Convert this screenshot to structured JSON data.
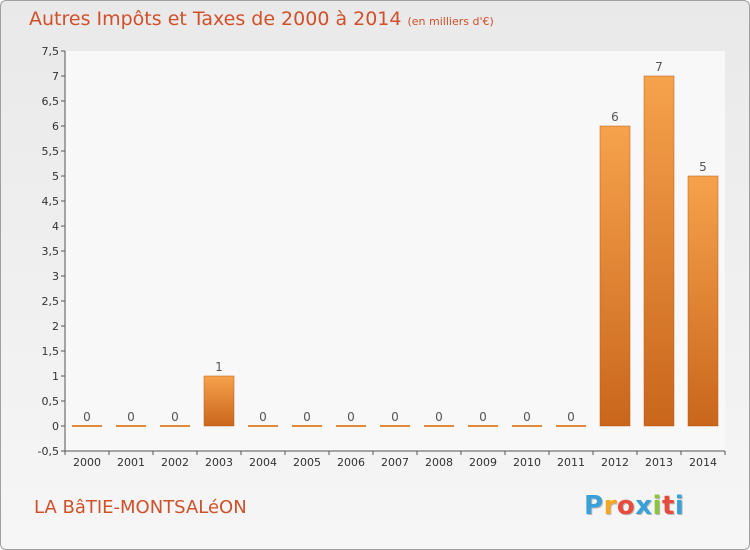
{
  "header": {
    "title": "Autres Impôts et Taxes de 2000 à 2014",
    "unit": "(en milliers d'€)"
  },
  "footer": {
    "commune": "LA BâTIE-MONTSALéON",
    "logo": [
      "P",
      "r",
      "o",
      "x",
      "i",
      "t",
      "i"
    ],
    "logo_colors": [
      "#3aa0d8",
      "#f5a623",
      "#e84b3c",
      "#3aa0d8",
      "#8bc53f",
      "#e84b3c",
      "#3aa0d8"
    ]
  },
  "colors": {
    "bar_light": "#f6a24c",
    "bar_dark": "#c9661c",
    "title": "#d0502a"
  },
  "chart_data": {
    "type": "bar",
    "title": "Autres Impôts et Taxes de 2000 à 2014",
    "xlabel": "",
    "ylabel": "",
    "categories": [
      "2000",
      "2001",
      "2002",
      "2003",
      "2004",
      "2005",
      "2006",
      "2007",
      "2008",
      "2009",
      "2010",
      "2011",
      "2012",
      "2013",
      "2014"
    ],
    "values": [
      0,
      0,
      0,
      1,
      0,
      0,
      0,
      0,
      0,
      0,
      0,
      0,
      6,
      7,
      5
    ],
    "ylim": [
      -0.5,
      7.5
    ],
    "yticks": [
      "-0,5",
      "0",
      "0,5",
      "1",
      "1,5",
      "2",
      "2,5",
      "3",
      "3,5",
      "4",
      "4,5",
      "5",
      "5,5",
      "6",
      "6,5",
      "7",
      "7,5"
    ],
    "grid": false,
    "legend": "none"
  }
}
